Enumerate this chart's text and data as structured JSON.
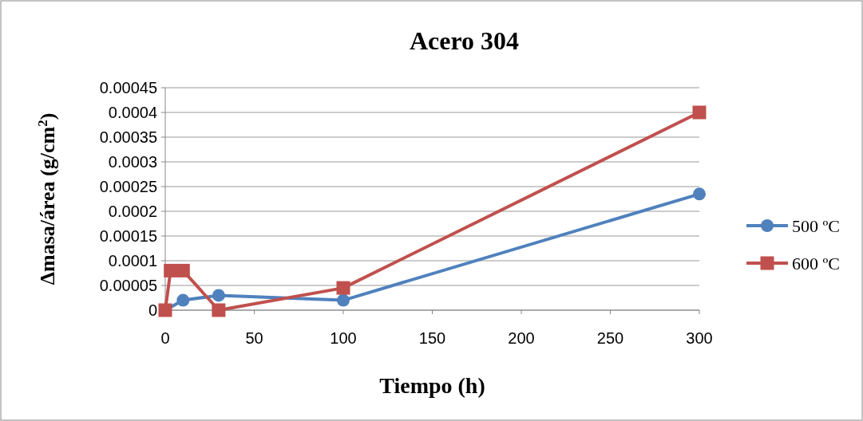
{
  "chart_data": {
    "type": "line",
    "title": "Acero 304",
    "xlabel": "Tiempo (h)",
    "ylabel": "Δmasa/área (g/cm$^{2}$)",
    "series": [
      {
        "name": "500 ºC",
        "color": "#4f81bd",
        "marker": "circle",
        "x": [
          0,
          10,
          30,
          100,
          300
        ],
        "values": [
          0,
          2e-05,
          3e-05,
          2e-05,
          0.000235
        ]
      },
      {
        "name": "600 ºC",
        "color": "#c0504d",
        "marker": "square",
        "x": [
          0,
          3,
          10,
          30,
          100,
          300
        ],
        "values": [
          0,
          8e-05,
          8e-05,
          0,
          4.5e-05,
          0.0004
        ]
      }
    ],
    "xlim": [
      0,
      300
    ],
    "xticks": [
      0,
      50,
      100,
      150,
      200,
      250,
      300
    ],
    "ylim": [
      0,
      0.00045
    ],
    "yticks": [
      0,
      {
        "value": 5e-05,
        "label": "0.00005"
      },
      0.0001,
      0.00015,
      0.0002,
      0.00025,
      0.0003,
      0.00035,
      0.0004,
      0.00045
    ],
    "grid": "y",
    "legend": "right"
  }
}
